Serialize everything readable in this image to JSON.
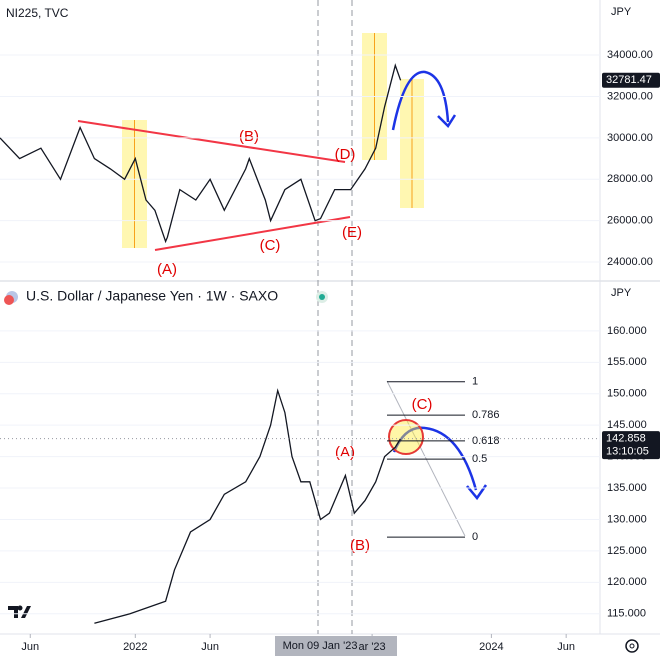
{
  "chart_data": [
    {
      "type": "line",
      "title": "NI225, TVC",
      "currency": "JPY",
      "color": "#131722",
      "xlim": [
        2021.24,
        2024.61
      ],
      "ylim": [
        23230,
        36660
      ],
      "yticks": [
        {
          "value": 24000,
          "label": "24000.00"
        },
        {
          "value": 26000,
          "label": "26000.00"
        },
        {
          "value": 28000,
          "label": "28000.00"
        },
        {
          "value": 30000,
          "label": "30000.00"
        },
        {
          "value": 32000,
          "label": "32000.00"
        },
        {
          "value": 34000,
          "label": "34000.00"
        }
      ],
      "x": [
        2021.24,
        2021.35,
        2021.47,
        2021.58,
        2021.69,
        2021.77,
        2021.86,
        2021.94,
        2022.0,
        2022.06,
        2022.11,
        2022.17,
        2022.18,
        2022.25,
        2022.34,
        2022.42,
        2022.5,
        2022.62,
        2022.64,
        2022.73,
        2022.76,
        2022.84,
        2022.93,
        2023.01,
        2023.04,
        2023.12,
        2023.21,
        2023.29,
        2023.35,
        2023.4,
        2023.46,
        2023.49
      ],
      "values": [
        30000,
        29000,
        29500,
        28000,
        30500,
        29000,
        28500,
        28000,
        29000,
        27000,
        26500,
        25000,
        25200,
        27500,
        27000,
        28000,
        26500,
        28500,
        29000,
        27000,
        26000,
        27500,
        28000,
        26000,
        26100,
        27500,
        27500,
        28500,
        29500,
        31500,
        33500,
        32781.47
      ],
      "last_price": 32781.47,
      "last_price_label": "32781.47",
      "waves": [
        "(A)",
        "(B)",
        "(C)",
        "(D)",
        "(E)"
      ]
    },
    {
      "type": "line",
      "title": "U.S. Dollar / Japanese Yen · 1W · SAXO",
      "currency": "JPY",
      "color": "#131722",
      "xlim": [
        2021.24,
        2024.61
      ],
      "ylim": [
        112.1,
        167.3
      ],
      "yticks": [
        {
          "value": 115,
          "label": "115.000"
        },
        {
          "value": 120,
          "label": "120.000"
        },
        {
          "value": 125,
          "label": "125.000"
        },
        {
          "value": 130,
          "label": "130.000"
        },
        {
          "value": 135,
          "label": "135.000"
        },
        {
          "value": 140,
          "label": "140.000"
        },
        {
          "value": 145,
          "label": "145.000"
        },
        {
          "value": 150,
          "label": "150.000"
        },
        {
          "value": 155,
          "label": "155.000"
        },
        {
          "value": 160,
          "label": "160.000"
        }
      ],
      "xticks": [
        {
          "value": 2021.41,
          "label": "Jun"
        },
        {
          "value": 2022.0,
          "label": "2022"
        },
        {
          "value": 2022.42,
          "label": "Jun"
        },
        {
          "value": 2023.33,
          "label": "ar '23"
        },
        {
          "value": 2024.0,
          "label": "2024"
        },
        {
          "value": 2024.42,
          "label": "Jun"
        }
      ],
      "crosshair_label": "Mon 09 Jan '23",
      "x": [
        2021.77,
        2021.97,
        2022.17,
        2022.22,
        2022.31,
        2022.42,
        2022.5,
        2022.62,
        2022.7,
        2022.76,
        2022.8,
        2022.84,
        2022.88,
        2022.93,
        2022.98,
        2023.04,
        2023.09,
        2023.15,
        2023.18,
        2023.23,
        2023.29,
        2023.35,
        2023.4,
        2023.46,
        2023.49
      ],
      "values": [
        113.5,
        115,
        117,
        122,
        128,
        130,
        134,
        136,
        140,
        145,
        150.5,
        147,
        140,
        136,
        136,
        130,
        131,
        135,
        137,
        131,
        133,
        136,
        140,
        141.5,
        142.858
      ],
      "last_price": 142.858,
      "last_price_label": "142.858",
      "countdown": "13:10:05",
      "waves": [
        "(A)",
        "(B)",
        "(C)"
      ],
      "fib": {
        "levels": [
          1,
          0.786,
          0.618,
          0.5,
          0
        ],
        "prices": [
          151.9,
          146.6,
          142.5,
          139.6,
          127.2
        ]
      }
    }
  ]
}
